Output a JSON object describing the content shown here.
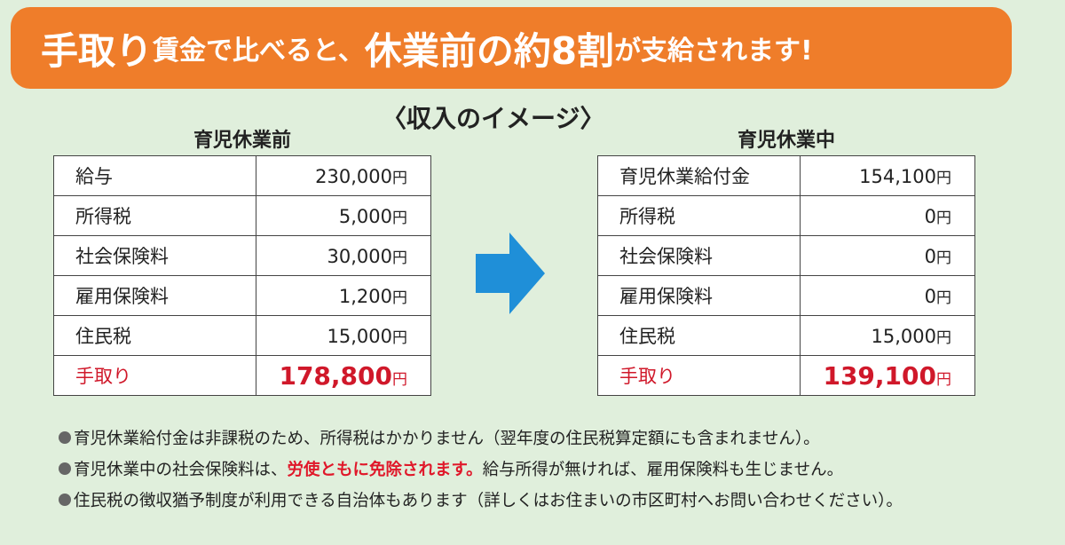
{
  "banner": {
    "segments": [
      "手取り",
      "賃金で比べると、",
      "休業前の約8割",
      "が支給されます!"
    ]
  },
  "subtitle": "〈収入のイメージ〉",
  "tables": [
    {
      "title": "育児休業前",
      "rows": [
        {
          "label": "給与",
          "amount": "230,000",
          "unit": "円"
        },
        {
          "label": "所得税",
          "amount": "5,000",
          "unit": "円"
        },
        {
          "label": "社会保険料",
          "amount": "30,000",
          "unit": "円"
        },
        {
          "label": "雇用保険料",
          "amount": "1,200",
          "unit": "円"
        },
        {
          "label": "住民税",
          "amount": "15,000",
          "unit": "円"
        },
        {
          "label": "手取り",
          "amount": "178,800",
          "unit": "円"
        }
      ]
    },
    {
      "title": "育児休業中",
      "rows": [
        {
          "label": "育児休業給付金",
          "amount": "154,100",
          "unit": "円"
        },
        {
          "label": "所得税",
          "amount": "0",
          "unit": "円"
        },
        {
          "label": "社会保険料",
          "amount": "0",
          "unit": "円"
        },
        {
          "label": "雇用保険料",
          "amount": "0",
          "unit": "円"
        },
        {
          "label": "住民税",
          "amount": "15,000",
          "unit": "円"
        },
        {
          "label": "手取り",
          "amount": "139,100",
          "unit": "円"
        }
      ]
    }
  ],
  "notes": [
    [
      "育児休業給付金は非課税のため、所得税はかかりません（翌年度の住民税算定額にも含まれません）。"
    ],
    [
      "育児休業中の社会保険料は、",
      "労使ともに免除されます。",
      "給与所得が無ければ、雇用保険料も生じません。"
    ],
    [
      "住民税の徴収猶予制度が利用できる自治体もあります（詳しくはお住まいの市区町村へお問い合わせください）。"
    ]
  ]
}
